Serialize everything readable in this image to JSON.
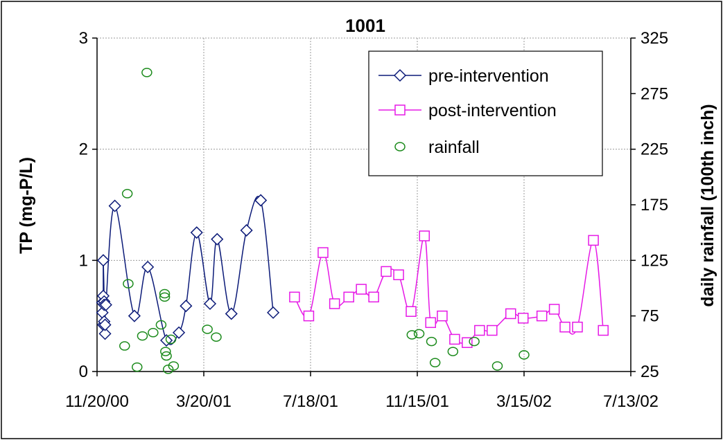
{
  "chart_data": {
    "type": "line",
    "title": "1001",
    "ylabel": "TP (mg-P/L)",
    "y2label": "daily rainfall (100th inch)",
    "x_axis_type": "date",
    "xlim": [
      "2000-11-20",
      "2002-07-13"
    ],
    "x_ticks": [
      "2000-11-20",
      "2001-03-20",
      "2001-07-18",
      "2001-11-15",
      "2002-03-15",
      "2002-07-13"
    ],
    "x_tick_labels": [
      "11/20/00",
      "3/20/01",
      "7/18/01",
      "11/15/01",
      "3/15/02",
      "7/13/02"
    ],
    "ylim": [
      0,
      3
    ],
    "y_ticks": [
      0,
      1,
      2,
      3
    ],
    "y_tick_labels": [
      "0",
      "1",
      "2",
      "3"
    ],
    "y2lim": [
      25,
      325
    ],
    "y2_ticks": [
      25,
      75,
      125,
      175,
      225,
      275,
      325
    ],
    "y2_tick_labels": [
      "25",
      "75",
      "125",
      "175",
      "225",
      "275",
      "325"
    ],
    "grid": true,
    "legend_position": "top-right",
    "colors": {
      "pre": "#0b1a78",
      "post": "#e619e6",
      "rainfall": "#1a8a1a"
    },
    "series": [
      {
        "name": "pre-intervention",
        "axis": "left",
        "marker": "diamond",
        "points": [
          [
            "2000-11-26",
            0.62
          ],
          [
            "2000-11-26",
            0.53
          ],
          [
            "2000-11-27",
            0.42
          ],
          [
            "2000-11-27",
            0.68
          ],
          [
            "2000-11-27",
            1.0
          ],
          [
            "2000-11-28",
            0.63
          ],
          [
            "2000-11-28",
            0.45
          ],
          [
            "2000-11-28",
            0.6
          ],
          [
            "2000-11-29",
            0.34
          ],
          [
            "2000-11-29",
            0.42
          ],
          [
            "2000-11-30",
            0.6
          ],
          [
            "2000-12-10",
            1.49
          ],
          [
            "2001-01-01",
            0.5
          ],
          [
            "2001-01-16",
            0.94
          ],
          [
            "2001-02-06",
            0.28
          ],
          [
            "2001-02-20",
            0.35
          ],
          [
            "2001-02-28",
            0.59
          ],
          [
            "2001-03-12",
            1.25
          ],
          [
            "2001-03-27",
            0.61
          ],
          [
            "2001-04-04",
            1.19
          ],
          [
            "2001-04-20",
            0.52
          ],
          [
            "2001-05-07",
            1.27
          ],
          [
            "2001-05-23",
            1.54
          ],
          [
            "2001-06-06",
            0.53
          ]
        ]
      },
      {
        "name": "post-intervention",
        "axis": "left",
        "marker": "square",
        "points": [
          [
            "2001-06-30",
            0.67
          ],
          [
            "2001-07-16",
            0.5
          ],
          [
            "2001-08-01",
            1.07
          ],
          [
            "2001-08-14",
            0.61
          ],
          [
            "2001-08-30",
            0.67
          ],
          [
            "2001-09-13",
            0.74
          ],
          [
            "2001-09-27",
            0.67
          ],
          [
            "2001-10-11",
            0.9
          ],
          [
            "2001-10-25",
            0.87
          ],
          [
            "2001-11-08",
            0.54
          ],
          [
            "2001-11-23",
            1.22
          ],
          [
            "2001-11-30",
            0.44
          ],
          [
            "2001-12-13",
            0.5
          ],
          [
            "2001-12-27",
            0.29
          ],
          [
            "2002-01-10",
            0.26
          ],
          [
            "2002-01-24",
            0.37
          ],
          [
            "2002-02-07",
            0.37
          ],
          [
            "2002-02-28",
            0.52
          ],
          [
            "2002-03-14",
            0.48
          ],
          [
            "2002-04-04",
            0.5
          ],
          [
            "2002-04-18",
            0.56
          ],
          [
            "2002-04-30",
            0.4
          ],
          [
            "2002-05-14",
            0.4
          ],
          [
            "2002-06-01",
            1.18
          ],
          [
            "2002-06-12",
            0.37
          ]
        ]
      },
      {
        "name": "rainfall",
        "axis": "right",
        "marker": "circle",
        "points": [
          [
            "2000-12-21",
            48
          ],
          [
            "2001-01-15",
            294
          ],
          [
            "2001-12-01",
            52
          ],
          [
            "2001-01-04",
            29
          ],
          [
            "2000-12-24",
            185
          ],
          [
            "2000-12-25",
            104
          ],
          [
            "2001-01-10",
            57
          ],
          [
            "2001-01-22",
            60
          ],
          [
            "2001-01-31",
            67
          ],
          [
            "2001-02-04",
            95
          ],
          [
            "2001-02-04",
            92
          ],
          [
            "2001-02-05",
            43
          ],
          [
            "2001-02-06",
            39
          ],
          [
            "2001-02-08",
            27
          ],
          [
            "2001-02-11",
            54
          ],
          [
            "2001-02-14",
            30
          ],
          [
            "2001-03-24",
            63
          ],
          [
            "2001-04-03",
            56
          ],
          [
            "2001-11-09",
            58
          ],
          [
            "2001-11-17",
            59
          ],
          [
            "2001-12-05",
            33
          ],
          [
            "2001-12-25",
            43
          ],
          [
            "2002-01-18",
            52
          ],
          [
            "2002-02-13",
            30
          ],
          [
            "2002-03-15",
            40
          ]
        ]
      }
    ]
  }
}
